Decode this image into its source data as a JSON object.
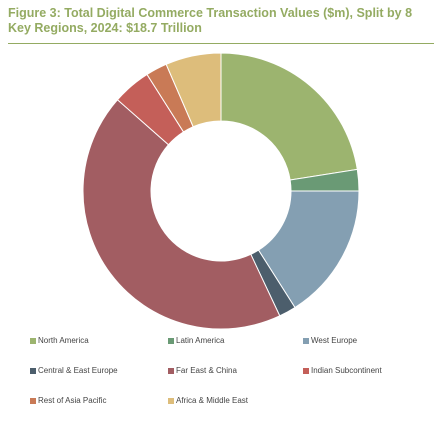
{
  "title": "Figure 3: Total Digital Commerce Transaction Values ($m), Split by 8 Key Regions, 2024: $18.7 Trillion",
  "chart_data": {
    "type": "pie",
    "style": "donut",
    "title": "Figure 3: Total Digital Commerce Transaction Values ($m), Split by 8 Key Regions, 2024: $18.7 Trillion",
    "legend_position": "bottom",
    "categories": [
      "North America",
      "Latin America",
      "West Europe",
      "Central & East Europe",
      "Far East & China",
      "Indian Subcontinent",
      "Rest of Asia Pacific",
      "Africa & Middle East"
    ],
    "values": [
      22.5,
      2.5,
      16.0,
      2.0,
      43.5,
      4.5,
      2.5,
      6.5
    ],
    "colors": [
      "#9cb46f",
      "#6a9a75",
      "#849fb2",
      "#4c5e6c",
      "#a25d62",
      "#c45f59",
      "#c97a56",
      "#ddbd7b"
    ]
  }
}
